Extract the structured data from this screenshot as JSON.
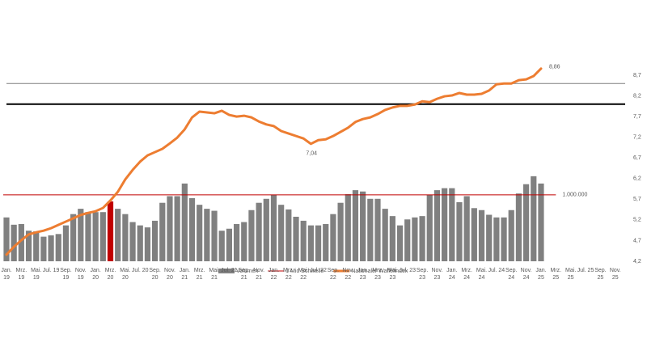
{
  "chart_data": {
    "type": "bar-line",
    "categories": [
      "Jan. 19",
      null,
      "Mrz. 19",
      null,
      "Mai. 19",
      null,
      "Jul. 19",
      null,
      "Sep. 19",
      null,
      "Nov. 19",
      null,
      "Jan. 20",
      null,
      "Mrz. 20",
      null,
      "Mai. 20",
      null,
      "Jul. 20",
      null,
      "Sep. 20",
      null,
      "Nov. 20",
      null,
      "Jan. 21",
      null,
      "Mrz. 21",
      null,
      "Mai. 21",
      null,
      "Jul. 21",
      null,
      "Sep. 21",
      null,
      "Nov. 21",
      null,
      "Jan. 22",
      null,
      "Mrz. 22",
      null,
      "Mai. 22",
      null,
      "Jul. 22",
      null,
      "Sep. 22",
      null,
      "Nov. 22",
      null,
      "Jan. 23",
      null,
      "Mrz. 23",
      null,
      "Mai. 23",
      null,
      "Jul. 23",
      null,
      "Sep. 23",
      null,
      "Nov. 23",
      null,
      "Jan. 24",
      null,
      "Mrz. 24",
      null,
      "Mai. 24",
      null,
      "Jul. 24",
      null,
      "Sep. 24",
      null,
      "Nov. 24",
      null,
      "Jan. 25",
      null,
      "Mrz. 25",
      null,
      "Mai. 25",
      null,
      "Jul. 25",
      null,
      "Sep. 25",
      null,
      "Nov. 25"
    ],
    "ylim": [
      0,
      2800000
    ],
    "y2lim": [
      4.2,
      8.7
    ],
    "y2ticks": [
      {
        "value": 4.2,
        "label": "4,2"
      },
      {
        "value": 4.7,
        "label": "4,7"
      },
      {
        "value": 5.2,
        "label": "5,2"
      },
      {
        "value": 5.7,
        "label": "5,7"
      },
      {
        "value": 6.2,
        "label": "6,2"
      },
      {
        "value": 6.7,
        "label": "6,7"
      },
      {
        "value": 7.2,
        "label": "7,2"
      },
      {
        "value": 7.7,
        "label": "7,7"
      },
      {
        "value": 8.2,
        "label": "8,2"
      },
      {
        "value": 8.7,
        "label": "8,7"
      }
    ],
    "y2_reference_lines": [
      8.5,
      8.0
    ],
    "series": [
      {
        "name": "Volumen",
        "type": "bar",
        "color": "#808080",
        "highlight": [
          14
        ],
        "highlight_color": "#c00000",
        "values": [
          660000,
          550000,
          560000,
          460000,
          450000,
          370000,
          390000,
          410000,
          540000,
          710000,
          790000,
          740000,
          740000,
          740000,
          900000,
          790000,
          710000,
          590000,
          540000,
          510000,
          610000,
          880000,
          980000,
          980000,
          1170000,
          950000,
          850000,
          790000,
          760000,
          460000,
          490000,
          560000,
          590000,
          770000,
          880000,
          940000,
          1000000,
          850000,
          780000,
          670000,
          610000,
          540000,
          540000,
          560000,
          710000,
          880000,
          1010000,
          1070000,
          1050000,
          940000,
          940000,
          790000,
          680000,
          540000,
          630000,
          660000,
          680000,
          1000000,
          1070000,
          1100000,
          1100000,
          890000,
          980000,
          800000,
          770000,
          700000,
          660000,
          660000,
          770000,
          1020000,
          1160000,
          1280000,
          1170000,
          null,
          null,
          null,
          null,
          null,
          null,
          null,
          null,
          null,
          null
        ]
      },
      {
        "name": "1 Mio Schwelle",
        "type": "threshold",
        "color": "#c00000",
        "value": 1000000,
        "value_label": "1.000.000"
      },
      {
        "name": "Nationaler Waffelindex",
        "type": "line",
        "axis": "y2",
        "color": "#ed7d31",
        "values": [
          4.36,
          4.55,
          4.71,
          4.85,
          4.9,
          4.94,
          5.0,
          5.08,
          5.16,
          5.24,
          5.32,
          5.37,
          5.41,
          5.49,
          5.67,
          5.88,
          6.18,
          6.41,
          6.61,
          6.76,
          6.84,
          6.92,
          7.05,
          7.19,
          7.39,
          7.68,
          7.82,
          7.8,
          7.78,
          7.84,
          7.74,
          7.7,
          7.72,
          7.68,
          7.58,
          7.51,
          7.47,
          7.35,
          7.29,
          7.23,
          7.17,
          7.04,
          7.13,
          7.15,
          7.23,
          7.33,
          7.43,
          7.57,
          7.64,
          7.68,
          7.76,
          7.86,
          7.92,
          7.96,
          7.96,
          7.99,
          8.07,
          8.05,
          8.13,
          8.19,
          8.21,
          8.27,
          8.23,
          8.23,
          8.25,
          8.33,
          8.48,
          8.5,
          8.5,
          8.58,
          8.6,
          8.68,
          8.86,
          null,
          null,
          null,
          null,
          null,
          null,
          null,
          null,
          null,
          null
        ],
        "value_labels": [
          null,
          null,
          null,
          null,
          null,
          null,
          null,
          null,
          null,
          null,
          null,
          null,
          null,
          null,
          null,
          null,
          null,
          null,
          null,
          null,
          null,
          null,
          null,
          null,
          null,
          null,
          null,
          null,
          null,
          null,
          null,
          null,
          null,
          null,
          null,
          null,
          null,
          null,
          null,
          null,
          null,
          "7,04",
          null,
          null,
          null,
          null,
          null,
          null,
          null,
          null,
          null,
          null,
          null,
          null,
          null,
          null,
          null,
          null,
          null,
          null,
          null,
          null,
          null,
          null,
          null,
          null,
          null,
          null,
          null,
          null,
          null,
          null,
          "8,86",
          null,
          null,
          null,
          null,
          null,
          null,
          null,
          null,
          null,
          null
        ]
      }
    ],
    "legend": "bottom"
  }
}
